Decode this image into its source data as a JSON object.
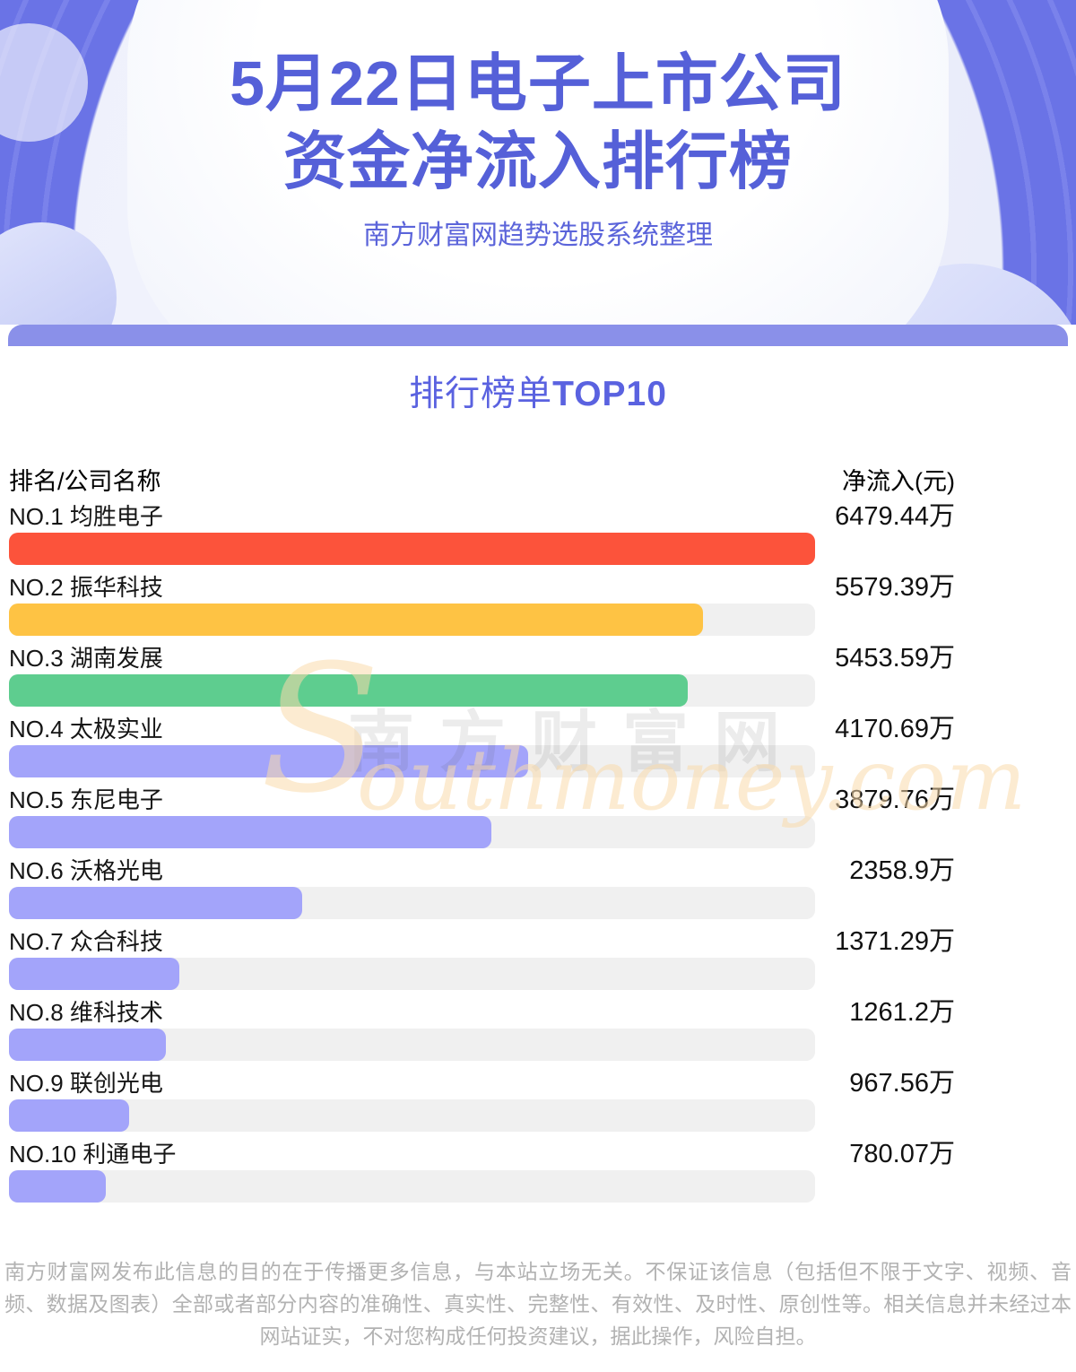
{
  "hero": {
    "title_line1": "5月22日电子上市公司",
    "title_line2": "资金净流入排行榜",
    "subtitle": "南方财富网趋势选股系统整理"
  },
  "section": {
    "title_regular": "排行榜单",
    "title_bold": "TOP10"
  },
  "table": {
    "col_company": "排名/公司名称",
    "col_inflow": "净流入(元)",
    "max_value": 6479.44,
    "rows": [
      {
        "rank": "NO.1",
        "company": "均胜电子",
        "label": "NO.1 均胜电子",
        "value": 6479.44,
        "value_display": "6479.44万",
        "color": "#fc533b"
      },
      {
        "rank": "NO.2",
        "company": "振华科技",
        "label": "NO.2 振华科技",
        "value": 5579.39,
        "value_display": "5579.39万",
        "color": "#fec344"
      },
      {
        "rank": "NO.3",
        "company": "湖南发展",
        "label": "NO.3 湖南发展",
        "value": 5453.59,
        "value_display": "5453.59万",
        "color": "#5ecd8f"
      },
      {
        "rank": "NO.4",
        "company": "太极实业",
        "label": "NO.4 太极实业",
        "value": 4170.69,
        "value_display": "4170.69万",
        "color": "#a3a4fa"
      },
      {
        "rank": "NO.5",
        "company": "东尼电子",
        "label": "NO.5 东尼电子",
        "value": 3879.76,
        "value_display": "3879.76万",
        "color": "#a3a4fa"
      },
      {
        "rank": "NO.6",
        "company": "沃格光电",
        "label": "NO.6 沃格光电",
        "value": 2358.9,
        "value_display": "2358.9万",
        "color": "#a3a4fa"
      },
      {
        "rank": "NO.7",
        "company": "众合科技",
        "label": "NO.7 众合科技",
        "value": 1371.29,
        "value_display": "1371.29万",
        "color": "#a3a4fa"
      },
      {
        "rank": "NO.8",
        "company": "维科技术",
        "label": "NO.8 维科技术",
        "value": 1261.2,
        "value_display": "1261.2万",
        "color": "#a3a4fa"
      },
      {
        "rank": "NO.9",
        "company": "联创光电",
        "label": "NO.9 联创光电",
        "value": 967.56,
        "value_display": "967.56万",
        "color": "#a3a4fa"
      },
      {
        "rank": "NO.10",
        "company": "利通电子",
        "label": "NO.10 利通电子",
        "value": 780.07,
        "value_display": "780.07万",
        "color": "#a3a4fa"
      }
    ]
  },
  "watermark": {
    "cjk": "南方财富网",
    "latin_initial": "S",
    "latin_rest": "outhmoney.com"
  },
  "footer": {
    "disclaimer": "南方财富网发布此信息的目的在于传播更多信息，与本站立场无关。不保证该信息（包括但不限于文字、视频、音频、数据及图表）全部或者部分内容的准确性、真实性、完整性、有效性、及时性、原创性等。相关信息并未经过本网站证实，不对您构成任何投资建议，据此操作，风险自担。"
  },
  "chart_data": {
    "type": "bar",
    "orientation": "horizontal",
    "title": "5月22日电子上市公司资金净流入排行榜",
    "subtitle": "南方财富网趋势选股系统整理",
    "section_heading": "排行榜单TOP10",
    "categories": [
      "均胜电子",
      "振华科技",
      "湖南发展",
      "太极实业",
      "东尼电子",
      "沃格光电",
      "众合科技",
      "维科技术",
      "联创光电",
      "利通电子"
    ],
    "ranks": [
      "NO.1",
      "NO.2",
      "NO.3",
      "NO.4",
      "NO.5",
      "NO.6",
      "NO.7",
      "NO.8",
      "NO.9",
      "NO.10"
    ],
    "values": [
      6479.44,
      5579.39,
      5453.59,
      4170.69,
      3879.76,
      2358.9,
      1371.29,
      1261.2,
      967.56,
      780.07
    ],
    "value_labels": [
      "6479.44万",
      "5579.39万",
      "5453.59万",
      "4170.69万",
      "3879.76万",
      "2358.9万",
      "1371.29万",
      "1261.2万",
      "967.56万",
      "780.07万"
    ],
    "unit": "万元",
    "xlabel": "净流入(元)",
    "ylabel": "排名/公司名称",
    "xlim": [
      0,
      6479.44
    ],
    "grid": false,
    "legend": false,
    "bar_colors": [
      "#fc533b",
      "#fec344",
      "#5ecd8f",
      "#a3a4fa",
      "#a3a4fa",
      "#a3a4fa",
      "#a3a4fa",
      "#a3a4fa",
      "#a3a4fa",
      "#a3a4fa"
    ]
  },
  "colors": {
    "accent_purple": "#5560d8",
    "section_title": "#5a62e0",
    "band": "#8a90e9",
    "bar_red": "#fc533b",
    "bar_orange": "#fec344",
    "bar_green": "#5ecd8f",
    "bar_periwinkle": "#a3a4fa",
    "bar_track": "#f0f0f0",
    "footer_text": "#b2b2b2",
    "hero_arc": "#6a73e6"
  }
}
